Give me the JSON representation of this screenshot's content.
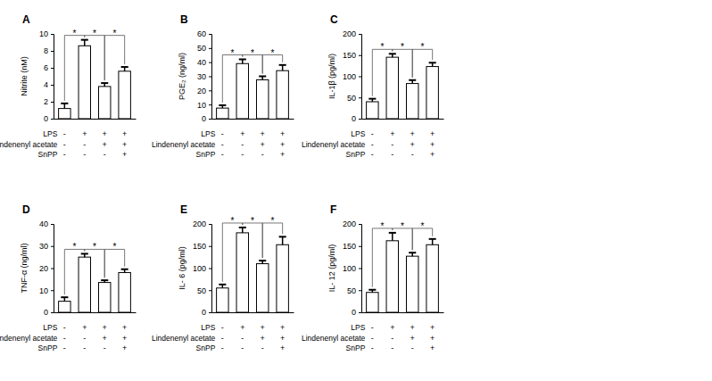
{
  "chart_data": [
    {
      "type": "bar",
      "title": "A",
      "ylabel": "Nitrite (nM)",
      "categories": [
        null,
        null,
        null,
        null
      ],
      "values": [
        1.2,
        8.6,
        3.8,
        5.6
      ],
      "errors": [
        0.6,
        0.7,
        0.4,
        0.5
      ],
      "color": "#ffffff",
      "ylim": [
        0,
        10
      ],
      "yticks": [
        0,
        2,
        4,
        6,
        8,
        10
      ],
      "treatments": [
        {
          "name": "LPS",
          "signs": [
            "-",
            "+",
            "+",
            "+"
          ]
        },
        {
          "name": "Lindenenyl acetate",
          "signs": [
            "-",
            "-",
            "+",
            "+"
          ]
        },
        {
          "name": "SnPP",
          "signs": [
            "-",
            "-",
            "-",
            "+"
          ]
        }
      ],
      "significance": [
        {
          "from": 0,
          "to": 1,
          "label": "*"
        },
        {
          "from": 1,
          "to": 2,
          "label": "*"
        },
        {
          "from": 2,
          "to": 3,
          "label": "*"
        }
      ]
    },
    {
      "type": "bar",
      "title": "B",
      "ylabel": "PGE₂ (ng/ml)",
      "categories": [
        null,
        null,
        null,
        null
      ],
      "values": [
        7.5,
        39,
        27.5,
        34
      ],
      "errors": [
        2,
        3,
        2.5,
        4
      ],
      "color": "#ffffff",
      "ylim": [
        0,
        60
      ],
      "yticks": [
        0,
        10,
        20,
        30,
        40,
        50,
        60
      ],
      "treatments": [
        {
          "name": "LPS",
          "signs": [
            "-",
            "+",
            "+",
            "+"
          ]
        },
        {
          "name": "Lindenenyl acetate",
          "signs": [
            "-",
            "-",
            "+",
            "+"
          ]
        },
        {
          "name": "SnPP",
          "signs": [
            "-",
            "-",
            "-",
            "+"
          ]
        }
      ],
      "significance": [
        {
          "from": 0,
          "to": 1,
          "label": "*"
        },
        {
          "from": 1,
          "to": 2,
          "label": "*"
        },
        {
          "from": 2,
          "to": 3,
          "label": "*"
        }
      ]
    },
    {
      "type": "bar",
      "title": "C",
      "ylabel": "IL-1β (pg/ml)",
      "categories": [
        null,
        null,
        null,
        null
      ],
      "values": [
        40,
        145,
        83,
        123
      ],
      "errors": [
        7,
        8,
        8,
        9
      ],
      "color": "#ffffff",
      "ylim": [
        0,
        200
      ],
      "yticks": [
        0,
        50,
        100,
        150,
        200
      ],
      "treatments": [
        {
          "name": "LPS",
          "signs": [
            "-",
            "+",
            "+",
            "+"
          ]
        },
        {
          "name": "Lindenenyl acetate",
          "signs": [
            "-",
            "-",
            "+",
            "+"
          ]
        },
        {
          "name": "SnPP",
          "signs": [
            "-",
            "-",
            "-",
            "+"
          ]
        }
      ],
      "significance": [
        {
          "from": 0,
          "to": 1,
          "label": "*"
        },
        {
          "from": 1,
          "to": 2,
          "label": "*"
        },
        {
          "from": 2,
          "to": 3,
          "label": "*"
        }
      ]
    },
    {
      "type": "bar",
      "title": "D",
      "ylabel": "TNF-α (ng/ml)",
      "categories": [
        null,
        null,
        null,
        null
      ],
      "values": [
        5,
        25,
        13.5,
        18
      ],
      "errors": [
        1.8,
        1.5,
        1,
        1.5
      ],
      "color": "#ffffff",
      "ylim": [
        0,
        40
      ],
      "yticks": [
        0,
        10,
        20,
        30,
        40
      ],
      "treatments": [
        {
          "name": "LPS",
          "signs": [
            "-",
            "+",
            "+",
            "+"
          ]
        },
        {
          "name": "Lindenenyl acetate",
          "signs": [
            "-",
            "-",
            "+",
            "+"
          ]
        },
        {
          "name": "SnPP",
          "signs": [
            "-",
            "-",
            "-",
            "+"
          ]
        }
      ],
      "significance": [
        {
          "from": 0,
          "to": 1,
          "label": "*"
        },
        {
          "from": 1,
          "to": 2,
          "label": "*"
        },
        {
          "from": 2,
          "to": 3,
          "label": "*"
        }
      ]
    },
    {
      "type": "bar",
      "title": "E",
      "ylabel": "IL- 6 (pg/ml)",
      "categories": [
        null,
        null,
        null,
        null
      ],
      "values": [
        55,
        180,
        110,
        153
      ],
      "errors": [
        8,
        12,
        7,
        18
      ],
      "color": "#ffffff",
      "ylim": [
        0,
        200
      ],
      "yticks": [
        0,
        50,
        100,
        150,
        200
      ],
      "treatments": [
        {
          "name": "LPS",
          "signs": [
            "-",
            "+",
            "+",
            "+"
          ]
        },
        {
          "name": "Lindenenyl acetate",
          "signs": [
            "-",
            "-",
            "+",
            "+"
          ]
        },
        {
          "name": "SnPP",
          "signs": [
            "-",
            "-",
            "-",
            "+"
          ]
        }
      ],
      "significance": [
        {
          "from": 0,
          "to": 1,
          "label": "*"
        },
        {
          "from": 1,
          "to": 2,
          "label": "*"
        },
        {
          "from": 2,
          "to": 3,
          "label": "*"
        }
      ]
    },
    {
      "type": "bar",
      "title": "F",
      "ylabel": "IL- 12 (pg/ml)",
      "categories": [
        null,
        null,
        null,
        null
      ],
      "values": [
        45,
        162,
        127,
        153
      ],
      "errors": [
        6,
        18,
        8,
        13
      ],
      "color": "#ffffff",
      "ylim": [
        0,
        200
      ],
      "yticks": [
        0,
        50,
        100,
        150,
        200
      ],
      "treatments": [
        {
          "name": "LPS",
          "signs": [
            "-",
            "+",
            "+",
            "+"
          ]
        },
        {
          "name": "Lindenenyl acetate",
          "signs": [
            "-",
            "-",
            "+",
            "+"
          ]
        },
        {
          "name": "SnPP",
          "signs": [
            "-",
            "-",
            "-",
            "+"
          ]
        }
      ],
      "significance": [
        {
          "from": 0,
          "to": 1,
          "label": "*"
        },
        {
          "from": 1,
          "to": 2,
          "label": "*"
        },
        {
          "from": 2,
          "to": 3,
          "label": "*"
        }
      ]
    }
  ]
}
